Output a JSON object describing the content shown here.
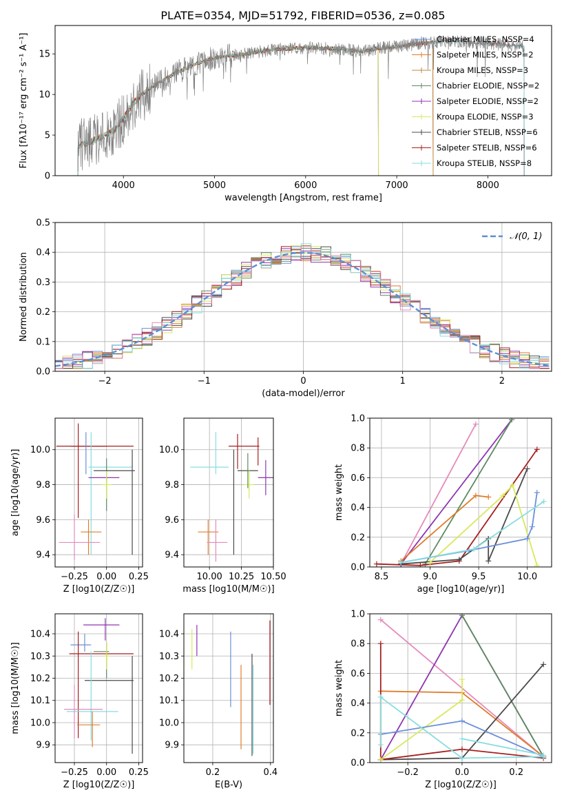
{
  "figure_title": "PLATE=0354, MJD=51792, FIBERID=0536, z=0.085",
  "colors": {
    "chabrier_miles": "#6a8fd8",
    "salpeter_miles": "#e07b29",
    "kroupa_miles": "#c28a3a",
    "chabrier_elodie": "#5d8a62",
    "salpeter_elodie": "#8e35b0",
    "kroupa_elodie": "#d8e85a",
    "chabrier_stelib": "#4a4a4a",
    "salpeter_stelib": "#a51f1f",
    "kroupa_stelib": "#86dde0",
    "pink": "#e58abb",
    "orange": "#e07b29",
    "data": "#808080",
    "gauss": "#5a8fd4"
  },
  "chart_data": [
    {
      "id": "spectrum",
      "type": "line",
      "xlabel": "wavelength [Angstrom, rest frame]",
      "ylabel": "Flux [fλ10⁻¹⁷ erg cm⁻² s⁻¹ A⁻¹]",
      "xlim": [
        3250,
        8700
      ],
      "ylim": [
        0,
        18.5
      ],
      "xticks": [
        4000,
        5000,
        6000,
        7000,
        8000
      ],
      "yticks": [
        0,
        5,
        10,
        15
      ],
      "legend_position": "top-right",
      "legend": [
        "Chabrier MILES, NSSP=4",
        "Salpeter MILES, NSSP=2",
        "Kroupa MILES, NSSP=3",
        "Chabrier ELODIE, NSSP=2",
        "Salpeter ELODIE, NSSP=2",
        "Kroupa ELODIE, NSSP=3",
        "Chabrier STELIB, NSSP=6",
        "Salpeter STELIB, NSSP=6",
        "Kroupa STELIB, NSSP=8"
      ],
      "continuum": {
        "x": [
          3500,
          3600,
          3700,
          3800,
          3900,
          4000,
          4100,
          4200,
          4300,
          4400,
          4500,
          4600,
          4800,
          5000,
          5200,
          5400,
          5600,
          5800,
          6000,
          6200,
          6400,
          6600,
          6800,
          7000,
          7200,
          7400,
          7600,
          7800,
          8000,
          8200,
          8400
        ],
        "y": [
          3.8,
          4.0,
          4.5,
          5.0,
          5.6,
          7.0,
          8.8,
          10.0,
          10.8,
          11.5,
          12.2,
          12.8,
          13.8,
          14.5,
          14.8,
          15.1,
          15.5,
          15.6,
          15.8,
          15.7,
          15.6,
          15.3,
          15.7,
          15.9,
          16.2,
          16.4,
          16.7,
          16.4,
          16.3,
          16.1,
          15.9
        ]
      }
    },
    {
      "id": "residuals",
      "type": "line",
      "xlabel": "(data-model)/error",
      "ylabel": "Normed distribution",
      "xlim": [
        -2.5,
        2.5
      ],
      "ylim": [
        0,
        0.5
      ],
      "xticks": [
        -2,
        -1,
        0,
        1,
        2
      ],
      "yticks": [
        0.0,
        0.1,
        0.2,
        0.3,
        0.4,
        0.5
      ],
      "grid": true,
      "legend_position": "top-right",
      "legend": [
        "𝒩(0, 1)"
      ]
    },
    {
      "id": "age_vs_z",
      "type": "scatter",
      "xlabel": "Z [log10(Z/Z☉)]",
      "ylabel": "age  [log10(age/yr)]",
      "xlim": [
        -0.4,
        0.28
      ],
      "ylim": [
        9.33,
        10.18
      ],
      "xticks": [
        -0.25,
        0.0,
        0.25
      ],
      "yticks": [
        9.4,
        9.6,
        9.8,
        10.0
      ],
      "grid": true,
      "points": [
        {
          "x": -0.14,
          "y": 10.02,
          "xerr": 0.14,
          "yerr": 0.0,
          "color": "salpeter_stelib"
        },
        {
          "x": -0.09,
          "y": 10.02,
          "xerr": 0.3,
          "yerr": 0.0,
          "color": "salpeter_stelib"
        },
        {
          "x": -0.22,
          "y": 9.88,
          "xerr": 0.0,
          "yerr": 0.27,
          "color": "salpeter_stelib"
        },
        {
          "x": 0.03,
          "y": 9.9,
          "xerr": 0.17,
          "yerr": 0.0,
          "color": "kroupa_stelib"
        },
        {
          "x": -0.16,
          "y": 9.98,
          "xerr": 0.0,
          "yerr": 0.12,
          "color": "chabrier_miles"
        },
        {
          "x": -0.12,
          "y": 9.75,
          "xerr": 0.0,
          "yerr": 0.35,
          "color": "kroupa_stelib"
        },
        {
          "x": -0.02,
          "y": 9.84,
          "xerr": 0.12,
          "yerr": 0.0,
          "color": "salpeter_elodie"
        },
        {
          "x": 0.0,
          "y": 9.8,
          "xerr": 0.0,
          "yerr": 0.15,
          "color": "chabrier_elodie"
        },
        {
          "x": 0.0,
          "y": 9.8,
          "xerr": 0.04,
          "yerr": 0.08,
          "color": "kroupa_elodie"
        },
        {
          "x": 0.06,
          "y": 9.88,
          "xerr": 0.16,
          "yerr": 0.0,
          "color": "chabrier_stelib"
        },
        {
          "x": 0.2,
          "y": 9.7,
          "xerr": 0.0,
          "yerr": 0.3,
          "color": "chabrier_stelib"
        },
        {
          "x": -0.12,
          "y": 9.53,
          "xerr": 0.08,
          "yerr": 0.0,
          "color": "salpeter_miles"
        },
        {
          "x": -0.14,
          "y": 9.5,
          "xerr": 0.0,
          "yerr": 0.1,
          "color": "salpeter_miles"
        },
        {
          "x": -0.21,
          "y": 9.47,
          "xerr": 0.16,
          "yerr": 0.0,
          "color": "pink"
        },
        {
          "x": -0.25,
          "y": 9.5,
          "xerr": 0.0,
          "yerr": 0.13,
          "color": "pink"
        }
      ]
    },
    {
      "id": "age_vs_mass",
      "type": "scatter",
      "xlabel": "mass [log10(M/M☉)]",
      "ylabel": "",
      "xlim": [
        9.8,
        10.5
      ],
      "ylim": [
        9.33,
        10.18
      ],
      "xticks": [
        10.0,
        10.25,
        10.5
      ],
      "yticks": [
        9.4,
        9.6,
        9.8,
        10.0
      ],
      "grid": true,
      "points": [
        {
          "x": 10.27,
          "y": 10.02,
          "xerr": 0.12,
          "yerr": 0.0,
          "color": "salpeter_stelib"
        },
        {
          "x": 10.22,
          "y": 9.99,
          "xerr": 0.0,
          "yerr": 0.1,
          "color": "salpeter_stelib"
        },
        {
          "x": 10.38,
          "y": 9.99,
          "xerr": 0.0,
          "yerr": 0.08,
          "color": "salpeter_stelib"
        },
        {
          "x": 10.0,
          "y": 9.9,
          "xerr": 0.15,
          "yerr": 0.0,
          "color": "kroupa_stelib"
        },
        {
          "x": 10.05,
          "y": 9.98,
          "xerr": 0.0,
          "yerr": 0.12,
          "color": "kroupa_stelib"
        },
        {
          "x": 10.44,
          "y": 9.84,
          "xerr": 0.06,
          "yerr": 0.0,
          "color": "salpeter_elodie"
        },
        {
          "x": 10.44,
          "y": 9.84,
          "xerr": 0.0,
          "yerr": 0.1,
          "color": "salpeter_elodie"
        },
        {
          "x": 10.3,
          "y": 9.88,
          "xerr": 0.08,
          "yerr": 0.0,
          "color": "chabrier_stelib"
        },
        {
          "x": 10.19,
          "y": 9.7,
          "xerr": 0.0,
          "yerr": 0.3,
          "color": "chabrier_stelib"
        },
        {
          "x": 10.31,
          "y": 9.8,
          "xerr": 0.04,
          "yerr": 0.08,
          "color": "kroupa_elodie"
        },
        {
          "x": 10.3,
          "y": 9.88,
          "xerr": 0.0,
          "yerr": 0.1,
          "color": "chabrier_elodie"
        },
        {
          "x": 9.99,
          "y": 9.53,
          "xerr": 0.08,
          "yerr": 0.0,
          "color": "salpeter_miles"
        },
        {
          "x": 9.99,
          "y": 9.5,
          "xerr": 0.0,
          "yerr": 0.1,
          "color": "salpeter_miles"
        },
        {
          "x": 10.06,
          "y": 9.47,
          "xerr": 0.08,
          "yerr": 0.0,
          "color": "pink"
        },
        {
          "x": 10.05,
          "y": 9.48,
          "xerr": 0.0,
          "yerr": 0.12,
          "color": "pink"
        }
      ]
    },
    {
      "id": "massweight_vs_age",
      "type": "line",
      "xlabel": "age  [log10(age/yr)]",
      "ylabel": "mass weight",
      "xlim": [
        8.38,
        10.25
      ],
      "ylim": [
        0,
        1.0
      ],
      "xticks": [
        8.5,
        9.0,
        9.5,
        10.0
      ],
      "yticks": [
        0.0,
        0.2,
        0.4,
        0.6,
        0.8,
        1.0
      ],
      "grid": true,
      "series": [
        {
          "color": "pink",
          "x": [
            8.7,
            9.47
          ],
          "y": [
            0.02,
            0.96
          ]
        },
        {
          "color": "salpeter_elodie",
          "x": [
            8.7,
            9.84
          ],
          "y": [
            0.02,
            0.99
          ]
        },
        {
          "color": "chabrier_elodie",
          "x": [
            8.95,
            9.84
          ],
          "y": [
            0.02,
            0.99
          ]
        },
        {
          "color": "salpeter_miles",
          "x": [
            8.7,
            9.47,
            9.6
          ],
          "y": [
            0.04,
            0.48,
            0.47
          ]
        },
        {
          "color": "salpeter_stelib",
          "x": [
            8.45,
            8.9,
            9.3,
            10.1
          ],
          "y": [
            0.02,
            0.01,
            0.04,
            0.79
          ]
        },
        {
          "color": "chabrier_stelib",
          "x": [
            8.7,
            9.3,
            9.6,
            9.6,
            10.0
          ],
          "y": [
            0.02,
            0.05,
            0.19,
            0.04,
            0.66
          ]
        },
        {
          "color": "kroupa_elodie",
          "x": [
            9.0,
            9.75,
            9.85,
            10.1
          ],
          "y": [
            0.03,
            0.48,
            0.55,
            0.01
          ]
        },
        {
          "color": "chabrier_miles",
          "x": [
            8.7,
            9.4,
            10.0,
            10.05,
            10.1
          ],
          "y": [
            0.03,
            0.11,
            0.19,
            0.27,
            0.5
          ]
        },
        {
          "color": "kroupa_stelib",
          "x": [
            8.7,
            9.45,
            10.17
          ],
          "y": [
            0.03,
            0.12,
            0.44
          ]
        }
      ]
    },
    {
      "id": "mass_vs_z",
      "type": "scatter",
      "xlabel": "Z [log10(Z/Z☉)]",
      "ylabel": "mass [log10(M/M☉)]",
      "xlim": [
        -0.4,
        0.28
      ],
      "ylim": [
        9.82,
        10.49
      ],
      "xticks": [
        -0.25,
        0.0,
        0.25
      ],
      "yticks": [
        9.9,
        10.0,
        10.1,
        10.2,
        10.3,
        10.4
      ],
      "grid": true,
      "points": [
        {
          "x": -0.04,
          "y": 10.44,
          "xerr": 0.14,
          "yerr": 0.0,
          "color": "salpeter_elodie"
        },
        {
          "x": -0.01,
          "y": 10.42,
          "xerr": 0.0,
          "yerr": 0.05,
          "color": "salpeter_elodie"
        },
        {
          "x": -0.2,
          "y": 10.35,
          "xerr": 0.08,
          "yerr": 0.0,
          "color": "chabrier_miles"
        },
        {
          "x": -0.17,
          "y": 10.36,
          "xerr": 0.0,
          "yerr": 0.04,
          "color": "chabrier_miles"
        },
        {
          "x": -0.04,
          "y": 10.31,
          "xerr": 0.25,
          "yerr": 0.0,
          "color": "salpeter_stelib"
        },
        {
          "x": -0.22,
          "y": 10.17,
          "xerr": 0.0,
          "yerr": 0.24,
          "color": "salpeter_stelib"
        },
        {
          "x": 0.02,
          "y": 10.19,
          "xerr": 0.19,
          "yerr": 0.0,
          "color": "chabrier_stelib"
        },
        {
          "x": 0.2,
          "y": 10.08,
          "xerr": 0.0,
          "yerr": 0.22,
          "color": "chabrier_stelib"
        },
        {
          "x": -0.04,
          "y": 10.32,
          "xerr": 0.06,
          "yerr": 0.0,
          "color": "chabrier_elodie"
        },
        {
          "x": 0.0,
          "y": 10.28,
          "xerr": 0.0,
          "yerr": 0.08,
          "color": "chabrier_elodie"
        },
        {
          "x": 0.0,
          "y": 10.3,
          "xerr": 0.03,
          "yerr": 0.06,
          "color": "kroupa_elodie"
        },
        {
          "x": -0.11,
          "y": 10.05,
          "xerr": 0.2,
          "yerr": 0.0,
          "color": "kroupa_stelib"
        },
        {
          "x": -0.12,
          "y": 10.12,
          "xerr": 0.0,
          "yerr": 0.2,
          "color": "kroupa_stelib"
        },
        {
          "x": -0.18,
          "y": 10.06,
          "xerr": 0.15,
          "yerr": 0.0,
          "color": "pink"
        },
        {
          "x": -0.25,
          "y": 10.05,
          "xerr": 0.0,
          "yerr": 0.12,
          "color": "pink"
        },
        {
          "x": -0.14,
          "y": 9.99,
          "xerr": 0.09,
          "yerr": 0.0,
          "color": "salpeter_miles"
        },
        {
          "x": -0.11,
          "y": 9.97,
          "xerr": 0.0,
          "yerr": 0.08,
          "color": "salpeter_miles"
        }
      ]
    },
    {
      "id": "mass_vs_ebv",
      "type": "scatter",
      "xlabel": "E(B-V)",
      "ylabel": "",
      "xlim": [
        0.1,
        0.41
      ],
      "ylim": [
        9.82,
        10.49
      ],
      "xticks": [
        0.2,
        0.4
      ],
      "yticks": [
        9.9,
        10.0,
        10.1,
        10.2,
        10.3,
        10.4
      ],
      "grid": true,
      "points": [
        {
          "x": 0.128,
          "y": 10.33,
          "xerr": 0.0,
          "yerr": 0.09,
          "color": "kroupa_elodie"
        },
        {
          "x": 0.145,
          "y": 10.37,
          "xerr": 0.0,
          "yerr": 0.07,
          "color": "salpeter_elodie"
        },
        {
          "x": 0.262,
          "y": 10.24,
          "xerr": 0.0,
          "yerr": 0.17,
          "color": "chabrier_miles"
        },
        {
          "x": 0.298,
          "y": 10.07,
          "xerr": 0.0,
          "yerr": 0.19,
          "color": "salpeter_miles"
        },
        {
          "x": 0.336,
          "y": 10.08,
          "xerr": 0.0,
          "yerr": 0.23,
          "color": "chabrier_stelib"
        },
        {
          "x": 0.34,
          "y": 10.06,
          "xerr": 0.0,
          "yerr": 0.2,
          "color": "kroupa_stelib"
        },
        {
          "x": 0.398,
          "y": 10.27,
          "xerr": 0.0,
          "yerr": 0.19,
          "color": "salpeter_stelib"
        }
      ]
    },
    {
      "id": "massweight_vs_z",
      "type": "line",
      "xlabel": "Z [log10(Z/Z☉)]",
      "ylabel": "mass weight",
      "xlim": [
        -0.34,
        0.33
      ],
      "ylim": [
        0,
        1.0
      ],
      "xticks": [
        -0.2,
        0.0,
        0.2
      ],
      "yticks": [
        0.0,
        0.2,
        0.4,
        0.6,
        0.8,
        1.0
      ],
      "grid": true,
      "series": [
        {
          "color": "pink",
          "x": [
            -0.3,
            0.3
          ],
          "y": [
            0.96,
            0.04
          ]
        },
        {
          "color": "salpeter_elodie",
          "x": [
            -0.3,
            0.0,
            0.3
          ],
          "y": [
            0.02,
            0.99,
            0.04
          ]
        },
        {
          "color": "chabrier_elodie",
          "x": [
            0.0,
            0.3
          ],
          "y": [
            0.99,
            0.04
          ]
        },
        {
          "color": "salpeter_miles",
          "x": [
            -0.3,
            0.0,
            0.3
          ],
          "y": [
            0.48,
            0.47,
            0.04
          ]
        },
        {
          "color": "chabrier_stelib",
          "x": [
            -0.3,
            0.0,
            0.3
          ],
          "y": [
            0.02,
            0.03,
            0.66
          ]
        },
        {
          "color": "salpeter_stelib",
          "x": [
            -0.3,
            -0.3,
            0.0,
            0.3
          ],
          "y": [
            0.8,
            0.02,
            0.09,
            0.03
          ]
        },
        {
          "color": "kroupa_elodie",
          "x": [
            -0.3,
            0.0,
            0.0
          ],
          "y": [
            0.02,
            0.42,
            0.56
          ]
        },
        {
          "color": "chabrier_miles",
          "x": [
            -0.3,
            0.0,
            0.3
          ],
          "y": [
            0.19,
            0.28,
            0.04
          ]
        },
        {
          "color": "kroupa_stelib",
          "x": [
            -0.3,
            0.0,
            0.3
          ],
          "y": [
            0.44,
            0.03,
            0.04
          ]
        },
        {
          "color": "kroupa_stelib",
          "x": [
            -0.3,
            -0.3
          ],
          "y": [
            0.12,
            0.44
          ]
        },
        {
          "color": "kroupa_stelib",
          "x": [
            0.0,
            0.3
          ],
          "y": [
            0.16,
            0.05
          ]
        }
      ]
    }
  ]
}
